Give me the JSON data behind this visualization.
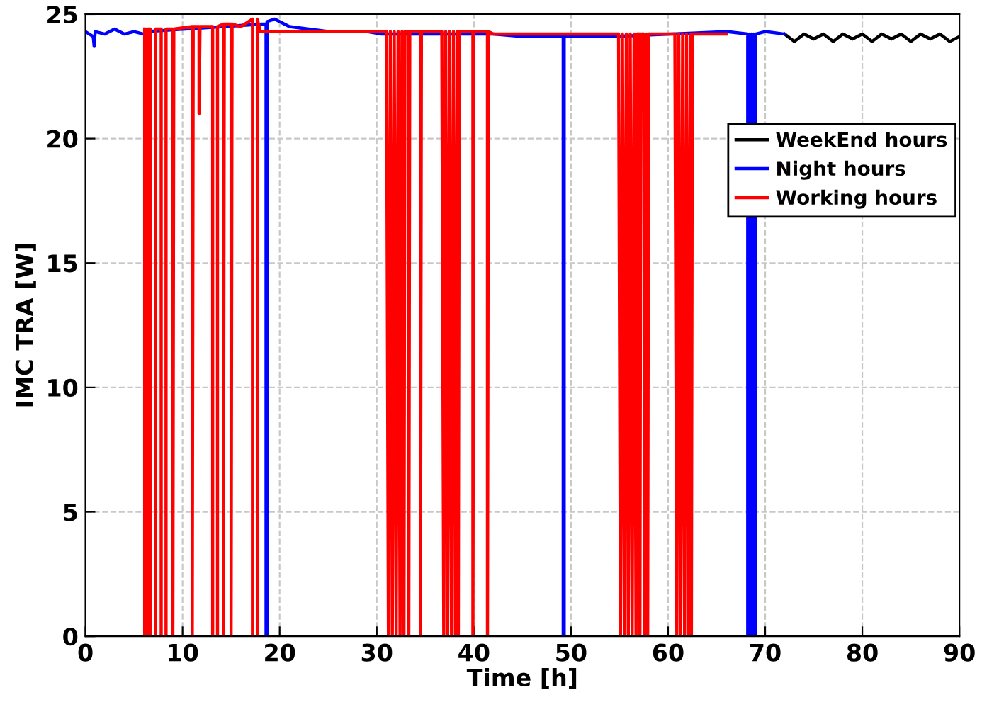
{
  "chart_data": {
    "type": "line",
    "xlabel": "Time [h]",
    "ylabel": "IMC TRA [W]",
    "xlim": [
      0,
      90
    ],
    "xticks": [
      0,
      10,
      20,
      30,
      40,
      50,
      60,
      70,
      80,
      90
    ],
    "ylim": [
      0,
      25
    ],
    "yticks": [
      0,
      5,
      10,
      15,
      20,
      25
    ],
    "grid": true,
    "legend": "right",
    "marker": "none",
    "line_style": "solid",
    "series": [
      {
        "name": "WeekEnd hours",
        "color": "#000000",
        "x": [
          72,
          73,
          74,
          75,
          76,
          77,
          78,
          79,
          80,
          81,
          82,
          83,
          84,
          85,
          86,
          87,
          88,
          89,
          90
        ],
        "values": [
          24.2,
          23.9,
          24.2,
          24.0,
          24.2,
          23.9,
          24.2,
          24.0,
          24.2,
          23.9,
          24.2,
          24.0,
          24.2,
          23.9,
          24.2,
          24.0,
          24.2,
          23.9,
          24.1
        ]
      },
      {
        "name": "Night hours",
        "color": "#0000ff",
        "x": [
          0,
          0.8,
          0.9,
          1.0,
          2,
          3,
          4,
          5,
          6,
          6.3,
          18.2,
          18.6,
          18.6,
          18.7,
          18.7,
          19.5,
          21,
          23,
          25,
          29,
          30.5,
          42,
          45,
          48,
          49.2,
          49.2,
          49.3,
          49.3,
          52,
          54.5,
          66,
          68.2,
          68.2,
          68.4,
          68.4,
          68.6,
          68.6,
          68.8,
          68.8,
          69,
          69,
          70,
          72
        ],
        "values": [
          24.3,
          24.1,
          23.7,
          24.3,
          24.2,
          24.4,
          24.2,
          24.3,
          24.2,
          24.3,
          24.6,
          24.6,
          0,
          0,
          24.7,
          24.8,
          24.5,
          24.4,
          24.3,
          24.3,
          24.2,
          24.2,
          24.1,
          24.1,
          24.1,
          0,
          0,
          24.1,
          24.1,
          24.1,
          24.3,
          24.2,
          0,
          24.2,
          0,
          24.2,
          0,
          24.2,
          0,
          0,
          24.2,
          24.3,
          24.2
        ]
      },
      {
        "name": "Working hours",
        "color": "#ff0000",
        "x": [
          6.1,
          6.1,
          6.4,
          6.4,
          6.7,
          6.7,
          7.2,
          7.2,
          7.8,
          7.8,
          8.3,
          8.3,
          9.0,
          9.0,
          9.1,
          11.0,
          11.0,
          11.1,
          11.7,
          11.7,
          11.8,
          13.1,
          13.1,
          13.6,
          13.6,
          14.2,
          14.2,
          14.3,
          15.0,
          15.0,
          15.1,
          16,
          17.2,
          17.2,
          17.7,
          17.7,
          18.0,
          31.0,
          31.2,
          31.4,
          31.6,
          31.8,
          32.0,
          32.2,
          32.4,
          32.6,
          32.8,
          32.9,
          33.3,
          33.3,
          33.4,
          34.5,
          34.5,
          34.6,
          36.7,
          36.9,
          37.1,
          37.3,
          37.5,
          37.7,
          37.9,
          38.1,
          38.3,
          38.4,
          38.5,
          39.9,
          39.9,
          40.0,
          41.4,
          41.4,
          41.5,
          42,
          54.9,
          55.1,
          55.3,
          55.5,
          55.7,
          55.9,
          56.1,
          56.3,
          56.5,
          56.7,
          56.8,
          57.1,
          57.1,
          57.2,
          57.5,
          57.6,
          57.8,
          57.9,
          58.0,
          60.7,
          60.9,
          61.1,
          61.3,
          61.5,
          61.7,
          61.9,
          62.1,
          62.3,
          62.4,
          62.5,
          66
        ],
        "values": [
          24.4,
          0,
          0,
          24.4,
          24.4,
          0,
          0,
          24.4,
          24.4,
          0,
          0,
          24.4,
          24.4,
          0,
          24.4,
          24.5,
          0,
          24.5,
          24.5,
          21,
          24.5,
          24.5,
          0,
          0,
          24.5,
          24.6,
          0,
          24.6,
          24.6,
          0,
          24.6,
          24.5,
          24.8,
          0,
          0,
          24.8,
          24.3,
          24.3,
          0,
          24.3,
          0,
          24.3,
          0,
          24.3,
          0,
          24.3,
          0,
          24.3,
          24.3,
          0,
          24.3,
          24.3,
          0,
          24.3,
          24.3,
          0,
          24.3,
          0,
          24.3,
          0,
          24.3,
          0,
          24.3,
          0,
          24.3,
          24.3,
          0,
          24.3,
          24.3,
          0,
          24.3,
          24.2,
          24.2,
          0,
          24.2,
          0,
          24.2,
          0,
          24.2,
          0,
          24.2,
          0,
          24.2,
          24.2,
          0,
          24.2,
          24.2,
          0,
          24.2,
          0,
          24.2,
          24.2,
          0,
          24.2,
          0,
          24.2,
          0,
          24.2,
          0,
          24.2,
          0,
          24.2,
          24.2
        ]
      }
    ]
  }
}
